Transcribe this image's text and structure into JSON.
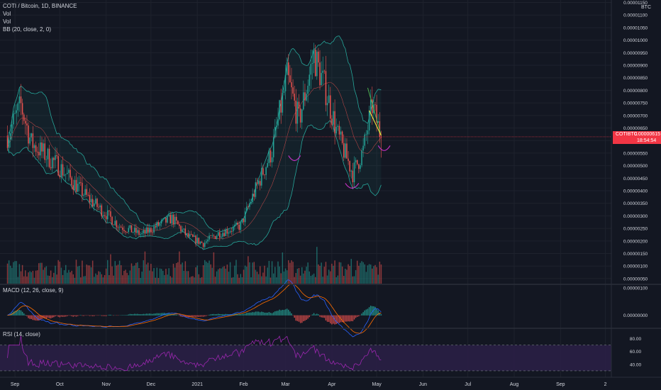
{
  "header": {
    "title": "COTI / Bitcoin, 1D, BINANCE",
    "vol1": "Vol",
    "vol2": "Vol",
    "bb": "BB (20, close, 2, 0)",
    "macd": "MACD (12, 26, close, 9)",
    "rsi": "RSI (14, close)",
    "currency": "BTC"
  },
  "price_badge": {
    "symbol": "COTIBTC",
    "price": "0.00000615",
    "countdown": "18:54:54"
  },
  "colors": {
    "bg": "#131722",
    "up": "#26a69a",
    "down": "#ef5350",
    "band": "#26a69a",
    "basis": "#ef5350",
    "macd": "#2962ff",
    "signal": "#ff6d00",
    "rsi": "#9c27b0",
    "badge": "#f23645",
    "pattern_green": "#4caf50",
    "pattern_yellow": "#ffeb3b",
    "arc": "#c030c0"
  },
  "chart_data": {
    "type": "candlestick",
    "series_anchors": {
      "date": [
        "2020-08-27",
        "2020-09-05",
        "2020-09-12",
        "2020-09-30",
        "2020-10-20",
        "2020-11-10",
        "2020-11-25",
        "2020-12-05",
        "2020-12-15",
        "2020-12-25",
        "2021-01-05",
        "2021-01-15",
        "2021-01-30",
        "2021-02-10",
        "2021-02-20",
        "2021-03-02",
        "2021-03-10",
        "2021-03-20",
        "2021-03-28",
        "2021-04-05",
        "2021-04-15",
        "2021-04-22",
        "2021-04-28",
        "2021-05-04"
      ],
      "close": [
        6.2e-06,
        7.4e-06,
        5.9e-06,
        5e-06,
        3.7e-06,
        2.6e-06,
        2.25e-06,
        2.6e-06,
        2.9e-06,
        2.2e-06,
        1.9e-06,
        2.3e-06,
        2.6e-06,
        4.2e-06,
        5.6e-06,
        8.5e-06,
        6.8e-06,
        9.4e-06,
        8e-06,
        6.2e-06,
        4.7e-06,
        5.6e-06,
        7.4e-06,
        6.15e-06
      ]
    },
    "price_axis": {
      "labels": [
        "0.00001150",
        "0.00001100",
        "0.00001050",
        "0.00001000",
        "0.00000950",
        "0.00000900",
        "0.00000850",
        "0.00000800",
        "0.00000750",
        "0.00000700",
        "0.00000650",
        "0.00000600",
        "0.00000550",
        "0.00000500",
        "0.00000450",
        "0.00000400",
        "0.00000350",
        "0.00000300",
        "0.00000250",
        "0.00000200",
        "0.00000150",
        "0.00000100",
        "0.00000050"
      ],
      "values": [
        1.15e-05,
        1.1e-05,
        1.05e-05,
        1e-05,
        9.5e-06,
        9e-06,
        8.5e-06,
        8e-06,
        7.5e-06,
        7e-06,
        6.5e-06,
        6e-06,
        5.5e-06,
        5e-06,
        4.5e-06,
        4e-06,
        3.5e-06,
        3e-06,
        2.5e-06,
        2e-06,
        1.5e-06,
        1e-06,
        5e-07
      ],
      "range": [
        3e-07,
        1.16e-05
      ]
    },
    "macd_axis": {
      "labels": [
        "0.00000100",
        "0.00000000"
      ],
      "values": [
        1e-06,
        0.0
      ]
    },
    "rsi_axis": {
      "labels": [
        "80.00",
        "60.00",
        "40.00"
      ],
      "values": [
        80,
        60,
        40
      ],
      "bands": [
        70,
        30
      ]
    },
    "time_axis": {
      "labels": [
        "Sep",
        "Oct",
        "Nov",
        "Dec",
        "2021",
        "Feb",
        "Mar",
        "Apr",
        "May",
        "Jun",
        "Jul",
        "Aug",
        "Sep",
        "2"
      ],
      "dates": [
        "2020-09-01",
        "2020-10-01",
        "2020-11-01",
        "2020-12-01",
        "2021-01-01",
        "2021-02-01",
        "2021-03-01",
        "2021-04-01",
        "2021-05-01",
        "2021-06-01",
        "2021-07-01",
        "2021-08-01",
        "2021-09-01",
        "2021-10-01"
      ]
    },
    "last_price": 6.15e-06
  }
}
